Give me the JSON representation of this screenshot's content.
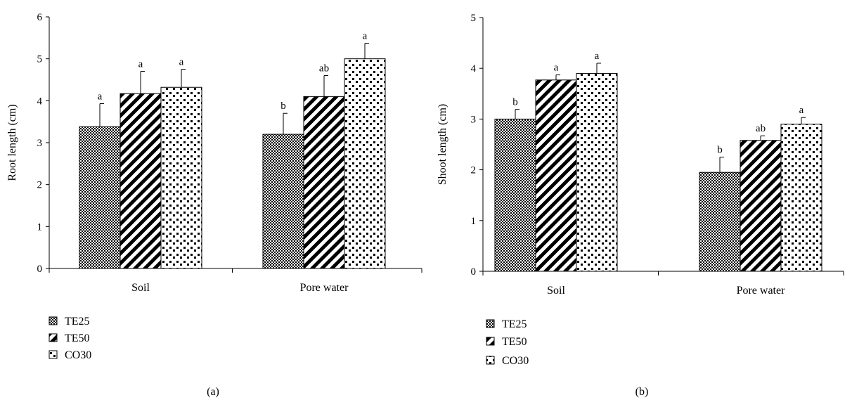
{
  "chart_data": [
    {
      "type": "bar",
      "panel_label": "(a)",
      "ylabel": "Root length (cm)",
      "ylim": [
        0,
        6
      ],
      "yticks": [
        0,
        1,
        2,
        3,
        4,
        5,
        6
      ],
      "categories": [
        "Soil",
        "Pore water"
      ],
      "series": [
        {
          "name": "TE25",
          "values": [
            3.38,
            3.2
          ],
          "errors": [
            0.55,
            0.5
          ],
          "labels": [
            "a",
            "b"
          ]
        },
        {
          "name": "TE50",
          "values": [
            4.17,
            4.1
          ],
          "errors": [
            0.53,
            0.5
          ],
          "labels": [
            "a",
            "ab"
          ]
        },
        {
          "name": "CO30",
          "values": [
            4.32,
            5.0
          ],
          "errors": [
            0.43,
            0.37
          ],
          "labels": [
            "a",
            "a"
          ]
        }
      ],
      "grid": false,
      "legend": "bottom-left"
    },
    {
      "type": "bar",
      "panel_label": "(b)",
      "ylabel": "Shoot length (cm)",
      "ylim": [
        0,
        5
      ],
      "yticks": [
        0,
        1,
        2,
        3,
        4,
        5
      ],
      "categories": [
        "Soil",
        "Pore water"
      ],
      "series": [
        {
          "name": "TE25",
          "values": [
            3.0,
            1.95
          ],
          "errors": [
            0.19,
            0.3
          ],
          "labels": [
            "b",
            "b"
          ]
        },
        {
          "name": "TE50",
          "values": [
            3.77,
            2.58
          ],
          "errors": [
            0.1,
            0.09
          ],
          "labels": [
            "a",
            "ab"
          ]
        },
        {
          "name": "CO30",
          "values": [
            3.9,
            2.9
          ],
          "errors": [
            0.2,
            0.13
          ],
          "labels": [
            "a",
            "a"
          ]
        }
      ],
      "grid": false,
      "legend": "bottom-left"
    }
  ],
  "style": {
    "bar_fill": "#ffffff",
    "pattern_color": "#000000",
    "axis_color": "#000000"
  }
}
